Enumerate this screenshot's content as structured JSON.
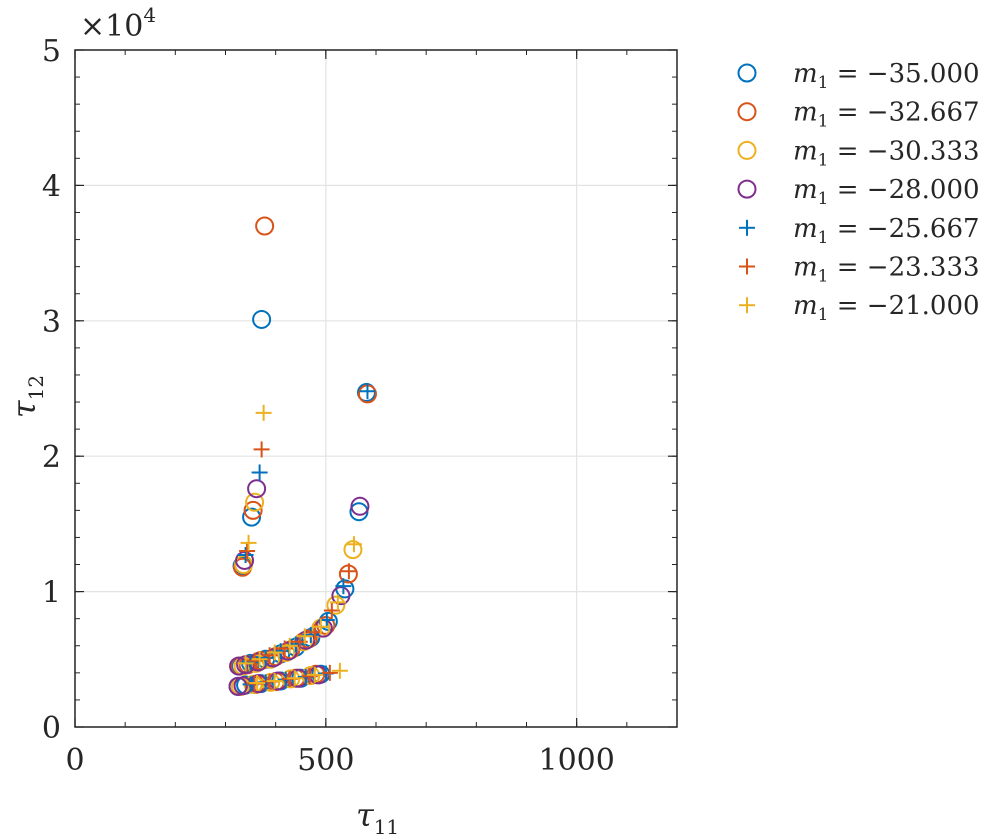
{
  "chart_data": {
    "type": "scatter",
    "title": "",
    "xlabel": "τ",
    "xlabel_sub": "11",
    "ylabel": "τ",
    "ylabel_sub": "12",
    "xlim": [
      0,
      1200
    ],
    "ylim": [
      0,
      50000
    ],
    "x_ticks": [
      0,
      500,
      1000
    ],
    "x_tick_labels": [
      "0",
      "500",
      "1000"
    ],
    "y_ticks": [
      0,
      10000,
      20000,
      30000,
      40000,
      50000
    ],
    "y_tick_labels": [
      "0",
      "1",
      "2",
      "3",
      "4",
      "5"
    ],
    "y_exponent_label": "×10",
    "y_exponent_power": "4",
    "grid": true,
    "legend_position": "outside-right",
    "series": [
      {
        "name": "m1 = −35.000",
        "legend_var": "m",
        "legend_sub": "1",
        "legend_rest": " = −35.000",
        "marker": "circle",
        "color": "#0072BD",
        "points": [
          [
            372,
            30100
          ],
          [
            581,
            24700
          ],
          [
            352,
            15500
          ],
          [
            566,
            15900
          ],
          [
            333,
            11900
          ],
          [
            538,
            10200
          ],
          [
            505,
            7800
          ],
          [
            470,
            6600
          ],
          [
            440,
            5900
          ],
          [
            410,
            5400
          ],
          [
            380,
            5000
          ],
          [
            350,
            4700
          ],
          [
            330,
            4500
          ],
          [
            490,
            3900
          ],
          [
            450,
            3600
          ],
          [
            410,
            3400
          ],
          [
            370,
            3200
          ],
          [
            340,
            3100
          ],
          [
            325,
            3000
          ]
        ]
      },
      {
        "name": "m1 = −32.667",
        "legend_var": "m",
        "legend_sub": "1",
        "legend_rest": " = −32.667",
        "marker": "circle",
        "color": "#D95319",
        "points": [
          [
            378,
            37000
          ],
          [
            583,
            24600
          ],
          [
            355,
            16000
          ],
          [
            334,
            11800
          ],
          [
            545,
            11300
          ],
          [
            500,
            7500
          ],
          [
            465,
            6500
          ],
          [
            430,
            5700
          ],
          [
            400,
            5200
          ],
          [
            370,
            4900
          ],
          [
            345,
            4600
          ],
          [
            328,
            4500
          ],
          [
            480,
            3900
          ],
          [
            440,
            3600
          ],
          [
            400,
            3350
          ],
          [
            360,
            3150
          ],
          [
            330,
            3000
          ]
        ]
      },
      {
        "name": "m1 = −30.333",
        "legend_var": "m",
        "legend_sub": "1",
        "legend_rest": " = −30.333",
        "marker": "circle",
        "color": "#EDB120",
        "points": [
          [
            358,
            16600
          ],
          [
            336,
            12000
          ],
          [
            554,
            13100
          ],
          [
            520,
            9000
          ],
          [
            490,
            7300
          ],
          [
            455,
            6300
          ],
          [
            420,
            5500
          ],
          [
            390,
            5000
          ],
          [
            360,
            4700
          ],
          [
            335,
            4500
          ],
          [
            470,
            3800
          ],
          [
            430,
            3550
          ],
          [
            390,
            3300
          ],
          [
            355,
            3150
          ],
          [
            330,
            3000
          ]
        ]
      },
      {
        "name": "m1 = −28.000",
        "legend_var": "m",
        "legend_sub": "1",
        "legend_rest": " = −28.000",
        "marker": "circle",
        "color": "#7E2F8E",
        "points": [
          [
            362,
            17600
          ],
          [
            568,
            16300
          ],
          [
            338,
            12300
          ],
          [
            530,
            9700
          ],
          [
            495,
            7300
          ],
          [
            460,
            6400
          ],
          [
            425,
            5600
          ],
          [
            395,
            5100
          ],
          [
            365,
            4800
          ],
          [
            340,
            4600
          ],
          [
            326,
            4500
          ],
          [
            485,
            3850
          ],
          [
            445,
            3600
          ],
          [
            405,
            3400
          ],
          [
            365,
            3200
          ],
          [
            335,
            3050
          ],
          [
            325,
            3000
          ]
        ]
      },
      {
        "name": "m1 = −25.667",
        "legend_var": "m",
        "legend_sub": "1",
        "legend_rest": " = −25.667",
        "marker": "plus",
        "color": "#0072BD",
        "points": [
          [
            368,
            18800
          ],
          [
            583,
            24800
          ],
          [
            340,
            12700
          ],
          [
            535,
            10400
          ],
          [
            502,
            7900
          ],
          [
            470,
            6800
          ],
          [
            440,
            6100
          ],
          [
            410,
            5600
          ],
          [
            380,
            5100
          ],
          [
            350,
            4800
          ],
          [
            500,
            3950
          ],
          [
            460,
            3700
          ],
          [
            420,
            3500
          ],
          [
            380,
            3300
          ],
          [
            350,
            3150
          ]
        ]
      },
      {
        "name": "m1 = −23.333",
        "legend_var": "m",
        "legend_sub": "1",
        "legend_rest": " = −23.333",
        "marker": "plus",
        "color": "#D95319",
        "points": [
          [
            372,
            20500
          ],
          [
            343,
            13000
          ],
          [
            546,
            11500
          ],
          [
            512,
            8600
          ],
          [
            478,
            7000
          ],
          [
            448,
            6300
          ],
          [
            418,
            5800
          ],
          [
            388,
            5300
          ],
          [
            358,
            4900
          ],
          [
            508,
            4000
          ],
          [
            468,
            3750
          ],
          [
            428,
            3550
          ],
          [
            388,
            3350
          ],
          [
            358,
            3200
          ]
        ]
      },
      {
        "name": "m1 = −21.000",
        "legend_var": "m",
        "legend_sub": "1",
        "legend_rest": " = −21.000",
        "marker": "plus",
        "color": "#EDB120",
        "points": [
          [
            376,
            23200
          ],
          [
            346,
            13600
          ],
          [
            556,
            13500
          ],
          [
            524,
            9200
          ],
          [
            490,
            7400
          ],
          [
            458,
            6700
          ],
          [
            428,
            6000
          ],
          [
            398,
            5500
          ],
          [
            368,
            5000
          ],
          [
            340,
            4700
          ],
          [
            528,
            4150
          ],
          [
            478,
            3850
          ],
          [
            438,
            3600
          ],
          [
            398,
            3400
          ],
          [
            363,
            3250
          ]
        ]
      }
    ]
  }
}
